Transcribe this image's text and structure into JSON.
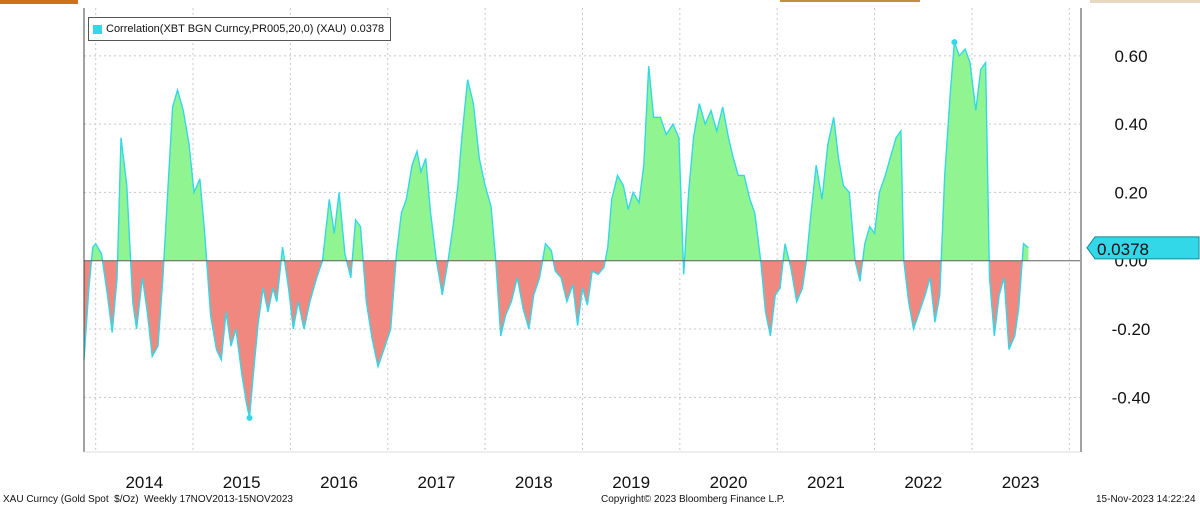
{
  "legend": {
    "label": "Correlation(XBT BGN Curncy,PR005,20,0) (XAU)",
    "last_value": "0.0378"
  },
  "footer": {
    "left": "XAU Curncy (Gold Spot  $/Oz)  Weekly 17NOV2013-15NOV2023",
    "center": "Copyright© 2023 Bloomberg Finance L.P.",
    "right": "15-Nov-2023 14:22:24"
  },
  "colors": {
    "line": "#33d8e8",
    "positive_fill": "#90f590",
    "negative_fill": "#f08880",
    "marker": "#33d8e8"
  },
  "chart_data": {
    "type": "area",
    "title": "",
    "xlabel": "",
    "ylabel": "",
    "ylim": [
      -0.56,
      0.74
    ],
    "y_ticks": [
      "0.60",
      "0.40",
      "0.20",
      "0.00",
      "-0.20",
      "-0.40"
    ],
    "x_ticks": [
      "2014",
      "2015",
      "2016",
      "2017",
      "2018",
      "2019",
      "2020",
      "2021",
      "2022",
      "2023"
    ],
    "x_range": [
      2013.88,
      2024.11
    ],
    "grid": true,
    "last_value": 0.0378,
    "max_marker": {
      "x": 2022.82,
      "y": 0.64
    },
    "min_marker": {
      "x": 2015.58,
      "y": -0.46
    },
    "series": [
      {
        "values": [
          [
            2013.88,
            -0.29
          ],
          [
            2013.93,
            -0.08
          ],
          [
            2013.97,
            0.04
          ],
          [
            2014.0,
            0.05
          ],
          [
            2014.06,
            0.02
          ],
          [
            2014.12,
            -0.1
          ],
          [
            2014.17,
            -0.21
          ],
          [
            2014.22,
            -0.05
          ],
          [
            2014.26,
            0.36
          ],
          [
            2014.32,
            0.22
          ],
          [
            2014.38,
            -0.12
          ],
          [
            2014.42,
            -0.2
          ],
          [
            2014.48,
            -0.05
          ],
          [
            2014.53,
            -0.15
          ],
          [
            2014.58,
            -0.28
          ],
          [
            2014.64,
            -0.25
          ],
          [
            2014.69,
            -0.05
          ],
          [
            2014.74,
            0.2
          ],
          [
            2014.79,
            0.45
          ],
          [
            2014.84,
            0.5
          ],
          [
            2014.9,
            0.44
          ],
          [
            2014.96,
            0.34
          ],
          [
            2015.01,
            0.2
          ],
          [
            2015.07,
            0.24
          ],
          [
            2015.12,
            0.08
          ],
          [
            2015.18,
            -0.16
          ],
          [
            2015.24,
            -0.26
          ],
          [
            2015.29,
            -0.29
          ],
          [
            2015.34,
            -0.15
          ],
          [
            2015.39,
            -0.25
          ],
          [
            2015.44,
            -0.2
          ],
          [
            2015.5,
            -0.33
          ],
          [
            2015.55,
            -0.42
          ],
          [
            2015.58,
            -0.46
          ],
          [
            2015.62,
            -0.33
          ],
          [
            2015.67,
            -0.18
          ],
          [
            2015.72,
            -0.08
          ],
          [
            2015.77,
            -0.15
          ],
          [
            2015.82,
            -0.08
          ],
          [
            2015.86,
            -0.12
          ],
          [
            2015.92,
            0.04
          ],
          [
            2015.98,
            -0.08
          ],
          [
            2016.03,
            -0.2
          ],
          [
            2016.08,
            -0.12
          ],
          [
            2016.14,
            -0.2
          ],
          [
            2016.2,
            -0.12
          ],
          [
            2016.27,
            -0.05
          ],
          [
            2016.33,
            0.0
          ],
          [
            2016.4,
            0.18
          ],
          [
            2016.45,
            0.08
          ],
          [
            2016.5,
            0.2
          ],
          [
            2016.56,
            0.02
          ],
          [
            2016.62,
            -0.05
          ],
          [
            2016.67,
            0.12
          ],
          [
            2016.72,
            0.1
          ],
          [
            2016.78,
            -0.12
          ],
          [
            2016.84,
            -0.23
          ],
          [
            2016.9,
            -0.31
          ],
          [
            2016.96,
            -0.26
          ],
          [
            2017.03,
            -0.2
          ],
          [
            2017.09,
            0.02
          ],
          [
            2017.14,
            0.14
          ],
          [
            2017.19,
            0.18
          ],
          [
            2017.25,
            0.28
          ],
          [
            2017.3,
            0.32
          ],
          [
            2017.34,
            0.26
          ],
          [
            2017.39,
            0.3
          ],
          [
            2017.44,
            0.14
          ],
          [
            2017.5,
            0.0
          ],
          [
            2017.56,
            -0.1
          ],
          [
            2017.62,
            0.0
          ],
          [
            2017.67,
            0.1
          ],
          [
            2017.72,
            0.22
          ],
          [
            2017.76,
            0.36
          ],
          [
            2017.82,
            0.53
          ],
          [
            2017.88,
            0.46
          ],
          [
            2017.94,
            0.3
          ],
          [
            2018.0,
            0.22
          ],
          [
            2018.06,
            0.16
          ],
          [
            2018.11,
            0.0
          ],
          [
            2018.16,
            -0.22
          ],
          [
            2018.21,
            -0.16
          ],
          [
            2018.27,
            -0.12
          ],
          [
            2018.33,
            -0.05
          ],
          [
            2018.39,
            -0.14
          ],
          [
            2018.45,
            -0.2
          ],
          [
            2018.5,
            -0.1
          ],
          [
            2018.56,
            -0.05
          ],
          [
            2018.62,
            0.05
          ],
          [
            2018.68,
            0.03
          ],
          [
            2018.72,
            -0.03
          ],
          [
            2018.78,
            -0.05
          ],
          [
            2018.84,
            -0.12
          ],
          [
            2018.9,
            -0.07
          ],
          [
            2018.95,
            -0.19
          ],
          [
            2019.0,
            -0.08
          ],
          [
            2019.05,
            -0.13
          ],
          [
            2019.1,
            -0.03
          ],
          [
            2019.16,
            -0.04
          ],
          [
            2019.22,
            -0.02
          ],
          [
            2019.26,
            0.04
          ],
          [
            2019.3,
            0.18
          ],
          [
            2019.36,
            0.25
          ],
          [
            2019.42,
            0.22
          ],
          [
            2019.47,
            0.15
          ],
          [
            2019.52,
            0.2
          ],
          [
            2019.58,
            0.17
          ],
          [
            2019.63,
            0.28
          ],
          [
            2019.68,
            0.57
          ],
          [
            2019.73,
            0.42
          ],
          [
            2019.8,
            0.42
          ],
          [
            2019.86,
            0.37
          ],
          [
            2019.93,
            0.4
          ],
          [
            2019.99,
            0.36
          ],
          [
            2020.04,
            -0.04
          ],
          [
            2020.09,
            0.2
          ],
          [
            2020.14,
            0.36
          ],
          [
            2020.2,
            0.46
          ],
          [
            2020.26,
            0.4
          ],
          [
            2020.32,
            0.44
          ],
          [
            2020.38,
            0.38
          ],
          [
            2020.44,
            0.45
          ],
          [
            2020.5,
            0.36
          ],
          [
            2020.55,
            0.3
          ],
          [
            2020.6,
            0.25
          ],
          [
            2020.66,
            0.25
          ],
          [
            2020.72,
            0.18
          ],
          [
            2020.77,
            0.14
          ],
          [
            2020.83,
            0.0
          ],
          [
            2020.88,
            -0.15
          ],
          [
            2020.93,
            -0.22
          ],
          [
            2020.98,
            -0.1
          ],
          [
            2021.03,
            -0.08
          ],
          [
            2021.08,
            0.05
          ],
          [
            2021.14,
            -0.02
          ],
          [
            2021.2,
            -0.12
          ],
          [
            2021.26,
            -0.08
          ],
          [
            2021.3,
            0.0
          ],
          [
            2021.34,
            0.12
          ],
          [
            2021.4,
            0.28
          ],
          [
            2021.46,
            0.18
          ],
          [
            2021.52,
            0.34
          ],
          [
            2021.58,
            0.42
          ],
          [
            2021.63,
            0.3
          ],
          [
            2021.68,
            0.22
          ],
          [
            2021.74,
            0.2
          ],
          [
            2021.8,
            0.0
          ],
          [
            2021.85,
            -0.06
          ],
          [
            2021.9,
            0.05
          ],
          [
            2021.95,
            0.1
          ],
          [
            2022.0,
            0.08
          ],
          [
            2022.05,
            0.2
          ],
          [
            2022.11,
            0.25
          ],
          [
            2022.16,
            0.3
          ],
          [
            2022.22,
            0.36
          ],
          [
            2022.27,
            0.38
          ],
          [
            2022.3,
            0.0
          ],
          [
            2022.35,
            -0.12
          ],
          [
            2022.4,
            -0.2
          ],
          [
            2022.46,
            -0.15
          ],
          [
            2022.52,
            -0.1
          ],
          [
            2022.57,
            -0.05
          ],
          [
            2022.62,
            -0.18
          ],
          [
            2022.67,
            -0.1
          ],
          [
            2022.72,
            0.25
          ],
          [
            2022.78,
            0.5
          ],
          [
            2022.82,
            0.64
          ],
          [
            2022.87,
            0.6
          ],
          [
            2022.93,
            0.62
          ],
          [
            2022.98,
            0.58
          ],
          [
            2023.04,
            0.44
          ],
          [
            2023.09,
            0.56
          ],
          [
            2023.14,
            0.58
          ],
          [
            2023.18,
            -0.05
          ],
          [
            2023.23,
            -0.22
          ],
          [
            2023.28,
            -0.1
          ],
          [
            2023.33,
            -0.05
          ],
          [
            2023.38,
            -0.26
          ],
          [
            2023.44,
            -0.22
          ],
          [
            2023.48,
            -0.14
          ],
          [
            2023.53,
            0.05
          ],
          [
            2023.58,
            0.0378
          ]
        ]
      }
    ]
  }
}
